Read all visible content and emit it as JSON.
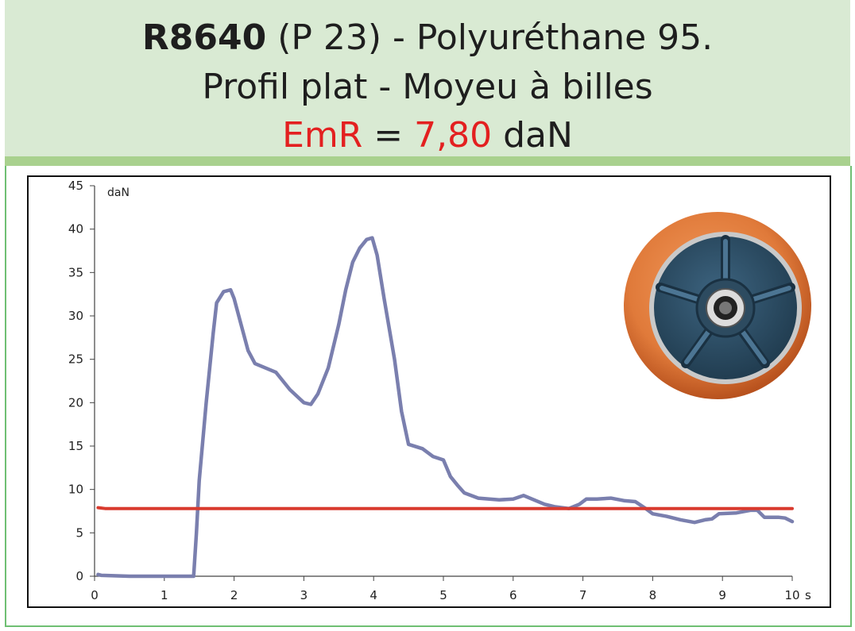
{
  "header": {
    "line1_bold": "R8640",
    "line1_rest": " (P 23) - Polyuréthane 95.",
    "line2": "Profil plat - Moyeu à billes",
    "line3_label": "EmR",
    "line3_eq": " = ",
    "line3_value": "7,80",
    "line3_unit": " daN"
  },
  "colors": {
    "header_bg": "#d9ead3",
    "accent_red": "#e32020",
    "series_force": "#7a7fae",
    "series_emr": "#d93a2e",
    "wheel_tread": "#e07a3a",
    "wheel_hub": "#2f4f66"
  },
  "chart_data": {
    "type": "line",
    "xlabel": "",
    "ylabel": "",
    "x_unit_label": "s",
    "y_unit_label": "daN",
    "xlim": [
      0,
      10
    ],
    "ylim": [
      0,
      45
    ],
    "x_ticks": [
      0,
      1,
      2,
      3,
      4,
      5,
      6,
      7,
      8,
      9,
      10
    ],
    "y_ticks": [
      0,
      5,
      10,
      15,
      20,
      25,
      30,
      35,
      40,
      45
    ],
    "grid": false,
    "series": [
      {
        "key": "force",
        "points": [
          [
            0.05,
            0.2
          ],
          [
            0.1,
            0.1
          ],
          [
            0.5,
            0
          ],
          [
            1.0,
            0
          ],
          [
            1.3,
            0
          ],
          [
            1.42,
            0
          ],
          [
            1.46,
            5
          ],
          [
            1.5,
            11
          ],
          [
            1.6,
            20
          ],
          [
            1.7,
            28
          ],
          [
            1.75,
            31.5
          ],
          [
            1.85,
            32.8
          ],
          [
            1.95,
            33
          ],
          [
            2.0,
            32
          ],
          [
            2.1,
            29
          ],
          [
            2.2,
            26
          ],
          [
            2.3,
            24.5
          ],
          [
            2.45,
            24
          ],
          [
            2.6,
            23.5
          ],
          [
            2.8,
            21.5
          ],
          [
            3.0,
            20
          ],
          [
            3.1,
            19.8
          ],
          [
            3.2,
            21
          ],
          [
            3.35,
            24
          ],
          [
            3.5,
            29
          ],
          [
            3.6,
            33
          ],
          [
            3.7,
            36.2
          ],
          [
            3.8,
            37.8
          ],
          [
            3.9,
            38.8
          ],
          [
            3.98,
            39
          ],
          [
            4.05,
            37
          ],
          [
            4.15,
            32
          ],
          [
            4.3,
            25
          ],
          [
            4.4,
            19
          ],
          [
            4.5,
            15.2
          ],
          [
            4.7,
            14.7
          ],
          [
            4.85,
            13.8
          ],
          [
            5.0,
            13.4
          ],
          [
            5.1,
            11.5
          ],
          [
            5.2,
            10.5
          ],
          [
            5.3,
            9.6
          ],
          [
            5.5,
            9
          ],
          [
            5.8,
            8.8
          ],
          [
            6.0,
            8.9
          ],
          [
            6.15,
            9.3
          ],
          [
            6.3,
            8.8
          ],
          [
            6.45,
            8.3
          ],
          [
            6.6,
            8
          ],
          [
            6.8,
            7.8
          ],
          [
            6.95,
            8.3
          ],
          [
            7.05,
            8.9
          ],
          [
            7.2,
            8.9
          ],
          [
            7.4,
            9
          ],
          [
            7.6,
            8.7
          ],
          [
            7.75,
            8.6
          ],
          [
            7.9,
            7.8
          ],
          [
            8.0,
            7.2
          ],
          [
            8.2,
            6.9
          ],
          [
            8.4,
            6.5
          ],
          [
            8.6,
            6.2
          ],
          [
            8.75,
            6.5
          ],
          [
            8.85,
            6.6
          ],
          [
            8.95,
            7.2
          ],
          [
            9.2,
            7.3
          ],
          [
            9.4,
            7.6
          ],
          [
            9.5,
            7.6
          ],
          [
            9.6,
            6.8
          ],
          [
            9.8,
            6.8
          ],
          [
            9.9,
            6.7
          ],
          [
            10.0,
            6.3
          ]
        ]
      },
      {
        "key": "emr",
        "points": [
          [
            0.05,
            7.9
          ],
          [
            0.15,
            7.8
          ],
          [
            10.0,
            7.8
          ]
        ]
      }
    ]
  }
}
